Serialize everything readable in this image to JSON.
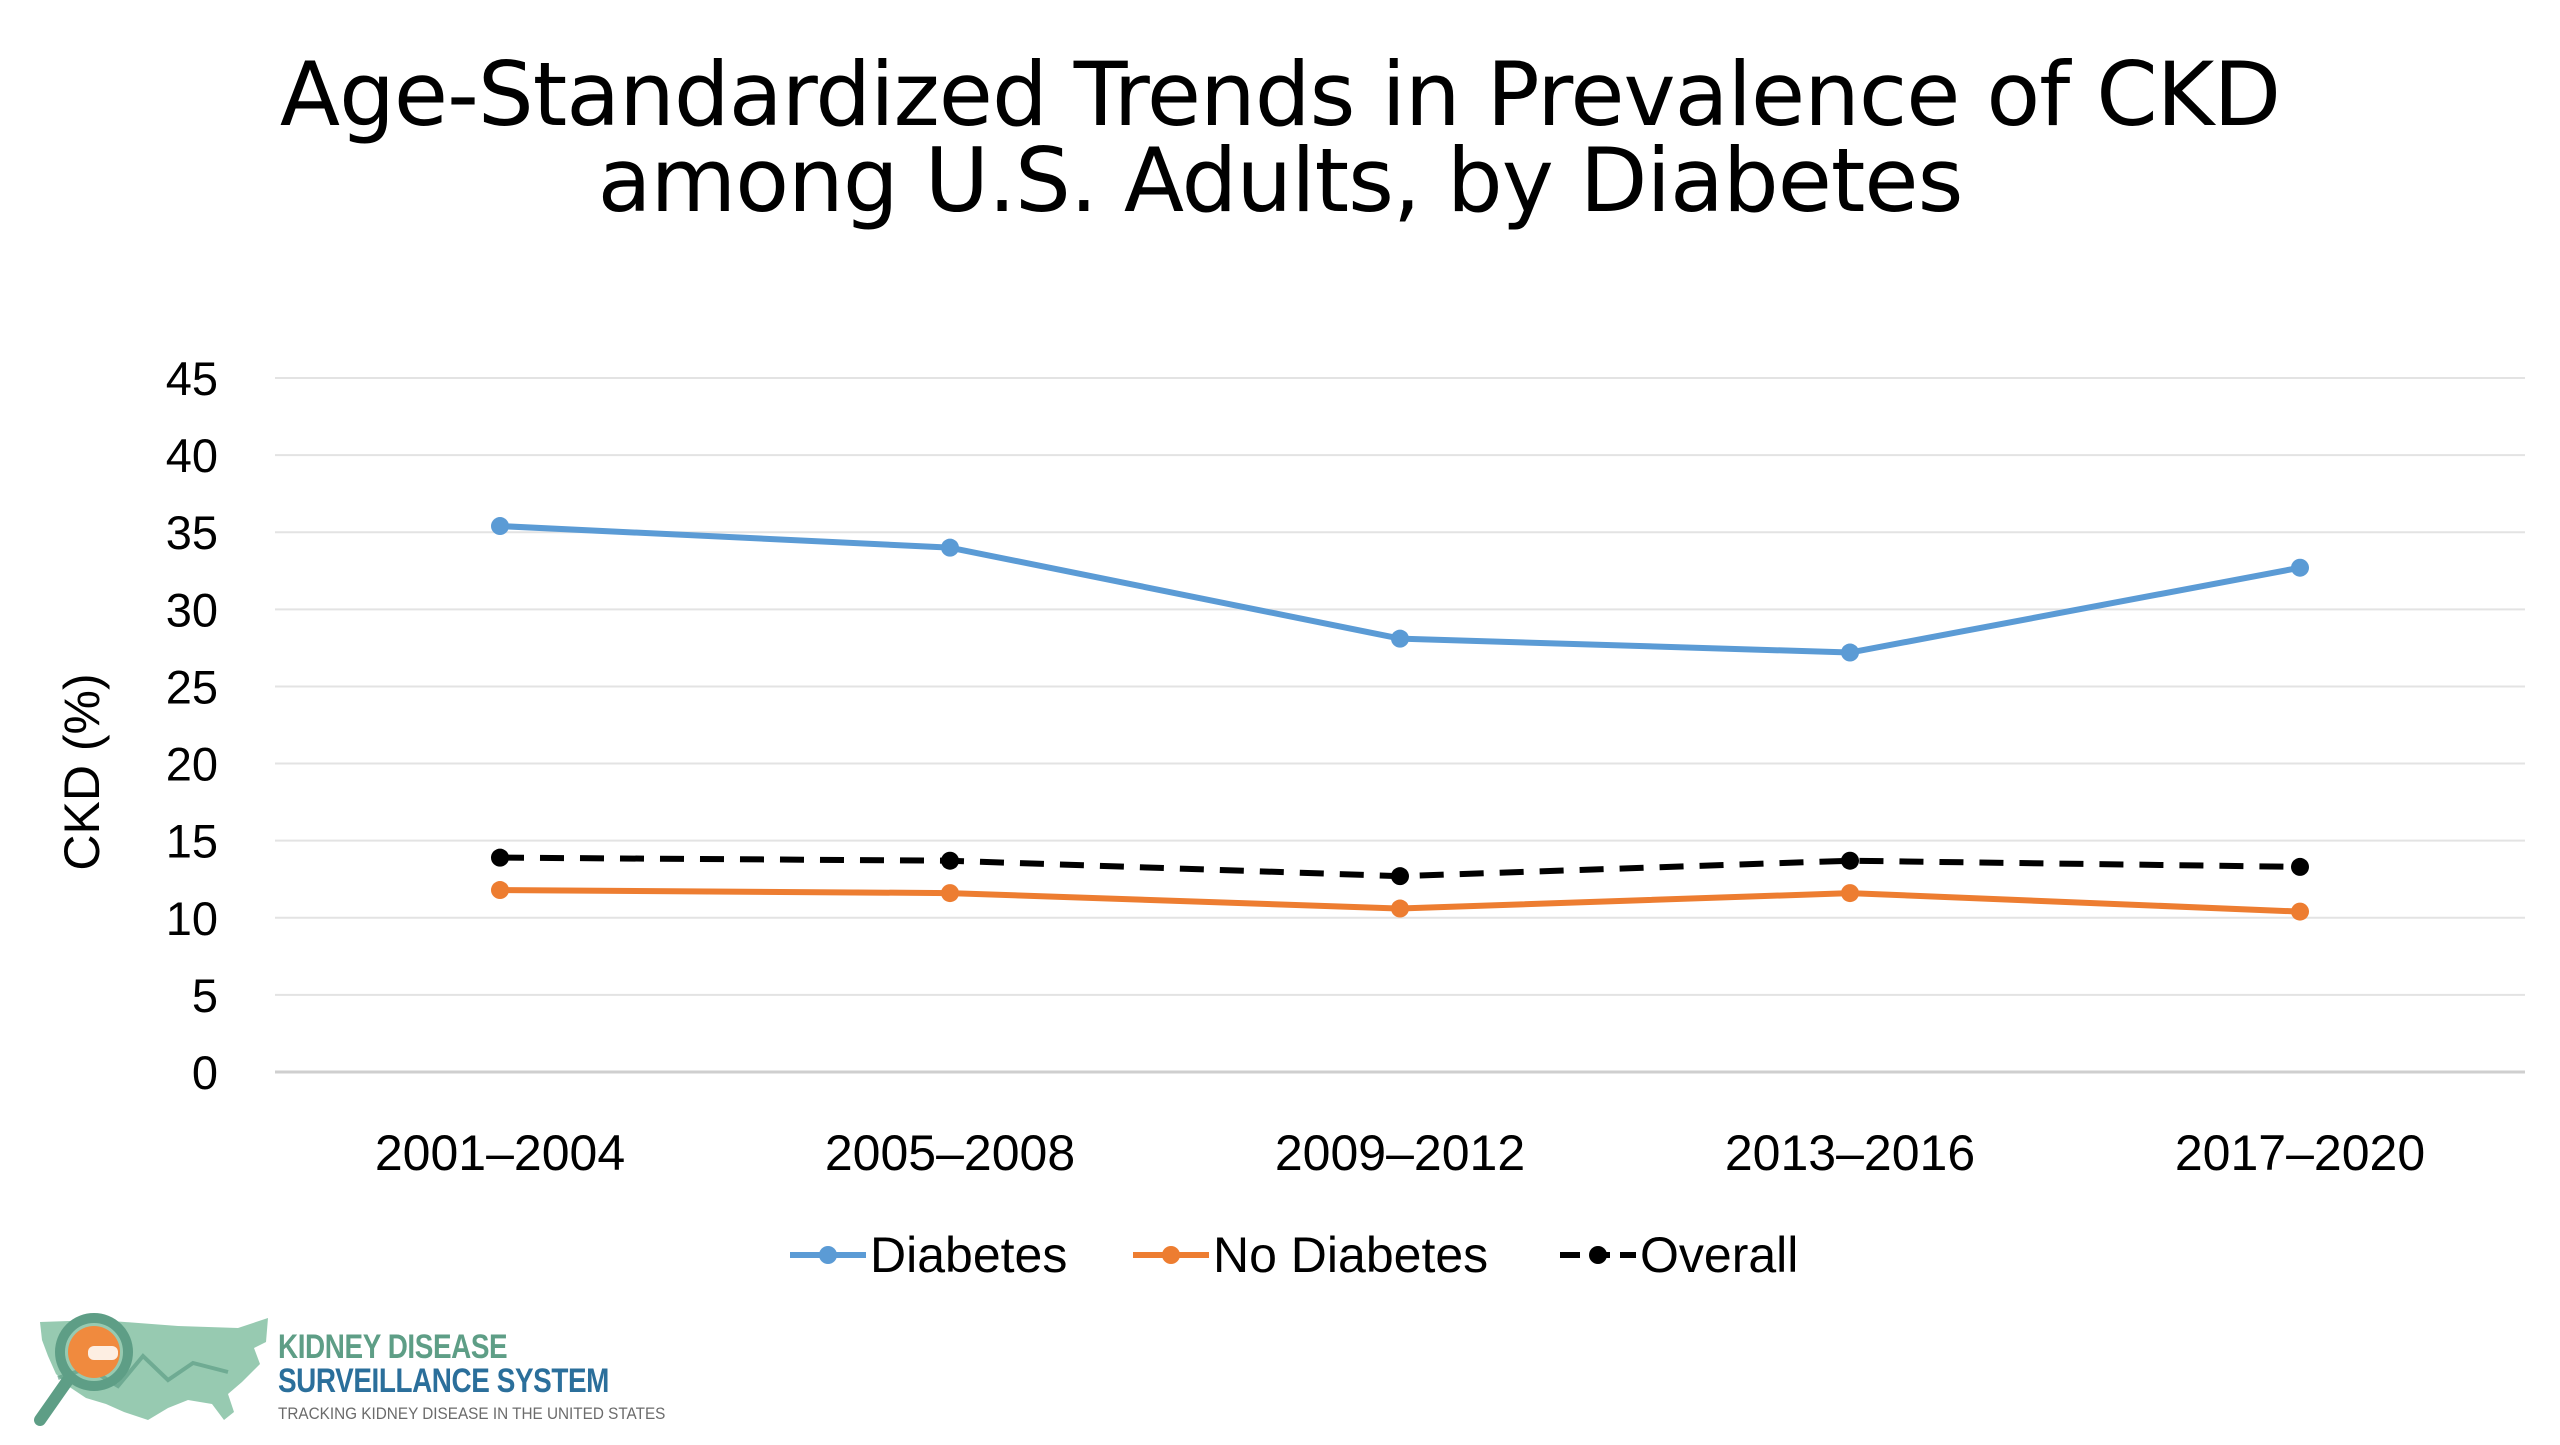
{
  "chart_data": {
    "type": "line",
    "title": "Age-Standardized Trends in Prevalence of CKD among U.S. Adults, by Diabetes",
    "title_lines": [
      "Age-Standardized Trends in Prevalence of CKD",
      "among U.S. Adults, by Diabetes"
    ],
    "xlabel": "",
    "ylabel": "CKD (%)",
    "ylim": [
      0,
      45
    ],
    "y_ticks": [
      "0",
      "5",
      "10",
      "15",
      "20",
      "25",
      "30",
      "35",
      "40",
      "45"
    ],
    "categories": [
      "2001–2004",
      "2005–2008",
      "2009–2012",
      "2013–2016",
      "2017–2020"
    ],
    "grid": "horizontal",
    "legend_position": "bottom",
    "series": [
      {
        "name": "Diabetes",
        "color": "#5b9bd5",
        "line_style": "solid",
        "values": [
          35.4,
          34.0,
          28.1,
          27.2,
          32.7
        ]
      },
      {
        "name": "No Diabetes",
        "color": "#ed7d31",
        "line_style": "solid",
        "values": [
          11.8,
          11.6,
          10.6,
          11.6,
          10.4
        ]
      },
      {
        "name": "Overall",
        "color": "#000000",
        "line_style": "dashed",
        "values": [
          13.9,
          13.7,
          12.7,
          13.7,
          13.3
        ]
      }
    ]
  },
  "logo": {
    "line1": "KIDNEY DISEASE",
    "line2": "SURVEILLANCE SYSTEM",
    "line3": "TRACKING KIDNEY DISEASE IN THE UNITED STATES",
    "colors": {
      "map": "#8cc4a8",
      "lens": "#f08a3e",
      "text_green": "#5e9e86",
      "text_blue": "#2b6f9b"
    }
  }
}
